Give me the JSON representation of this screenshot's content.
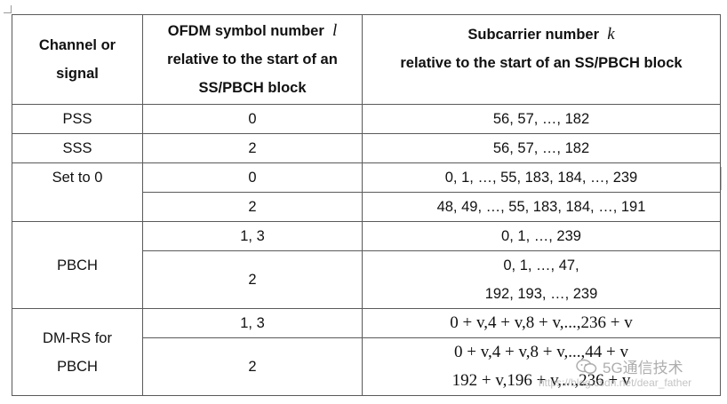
{
  "table": {
    "headers": {
      "col1": [
        "Channel or",
        "signal"
      ],
      "col2": [
        "OFDM symbol number",
        "l",
        "relative to the start of an",
        "SS/PBCH block"
      ],
      "col3": [
        "Subcarrier number",
        "k",
        "relative to the start of an SS/PBCH block"
      ]
    },
    "rows": {
      "pss": {
        "signal": "PSS",
        "symbol": "0",
        "subcarrier": "56, 57, …, 182"
      },
      "sss": {
        "signal": "SSS",
        "symbol": "2",
        "subcarrier": "56, 57, …, 182"
      },
      "set0": {
        "signal": "Set to 0",
        "r1": {
          "symbol": "0",
          "subcarrier": "0, 1, …, 55, 183, 184, …, 239"
        },
        "r2": {
          "symbol": "2",
          "subcarrier": "48, 49, …, 55, 183, 184, …, 191"
        }
      },
      "pbch": {
        "signal": "PBCH",
        "r1": {
          "symbol": "1, 3",
          "subcarrier": "0, 1, …, 239"
        },
        "r2": {
          "symbol": "2",
          "subcarrier_line1": "0, 1, …, 47,",
          "subcarrier_line2": "192, 193, …, 239"
        }
      },
      "dmrs": {
        "signal_line1": "DM-RS for",
        "signal_line2": "PBCH",
        "r1": {
          "symbol": "1, 3",
          "subcarrier": "0 + v,4 + v,8 + v,...,236 + v"
        },
        "r2": {
          "symbol": "2",
          "subcarrier_line1": "0 + v,4 + v,8 + v,...,44 + v",
          "subcarrier_line2": "192 + v,196 + v,...,236 + v"
        }
      }
    }
  },
  "watermark": {
    "label": "5G通信技术",
    "sub": "https://blog.csdn.net/dear_father",
    "icon": "wechat-icon"
  }
}
